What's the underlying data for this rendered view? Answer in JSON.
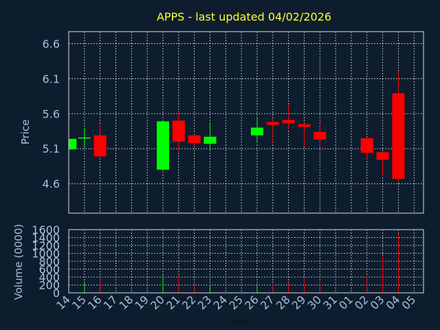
{
  "chart_data": {
    "type": "candlestick",
    "title": "APPS - last updated 04/02/2026",
    "ylabel_price": "Price",
    "ylabel_volume": "Volume (0000)",
    "xlabel": "Day",
    "price_ticks": [
      "6.6",
      "6.1",
      "5.6",
      "5.1",
      "4.6"
    ],
    "price_tick_values": [
      6.6,
      6.1,
      5.6,
      5.1,
      4.6
    ],
    "price_ylim": [
      4.18,
      6.77
    ],
    "volume_ticks": [
      "1600",
      "1400",
      "1200",
      "1000",
      "800",
      "600",
      "400",
      "200",
      "0"
    ],
    "volume_tick_values": [
      1600,
      1400,
      1200,
      1000,
      800,
      600,
      400,
      200,
      0
    ],
    "volume_ylim": [
      0,
      1600
    ],
    "x_ticks": [
      "14",
      "15",
      "16",
      "17",
      "18",
      "19",
      "20",
      "21",
      "22",
      "23",
      "24",
      "25",
      "26",
      "27",
      "28",
      "29",
      "30",
      "31",
      "01",
      "02",
      "03",
      "04",
      "05"
    ],
    "x_tick_index": [
      0,
      1,
      2,
      3,
      4,
      5,
      6,
      7,
      8,
      9,
      10,
      11,
      12,
      13,
      14,
      15,
      16,
      17,
      18,
      19,
      20,
      21,
      22
    ],
    "x_range": [
      0,
      22.6
    ],
    "candles": [
      {
        "day": "14",
        "x": 0.1,
        "open": 5.09,
        "close": 5.24,
        "high": 5.24,
        "low": 5.08,
        "volume": 0
      },
      {
        "day": "15",
        "x": 1.0,
        "open": 5.25,
        "close": 5.26,
        "high": 5.4,
        "low": 5.12,
        "volume": 250
      },
      {
        "day": "16",
        "x": 2.0,
        "open": 5.29,
        "close": 4.99,
        "high": 5.46,
        "low": 4.97,
        "volume": 340
      },
      {
        "day": "20",
        "x": 6.0,
        "open": 4.8,
        "close": 5.49,
        "high": 5.51,
        "low": 4.78,
        "volume": 450
      },
      {
        "day": "21",
        "x": 7.0,
        "open": 5.5,
        "close": 5.2,
        "high": 5.62,
        "low": 5.05,
        "volume": 440
      },
      {
        "day": "22",
        "x": 8.0,
        "open": 5.29,
        "close": 5.18,
        "high": 5.31,
        "low": 5.12,
        "volume": 200
      },
      {
        "day": "23",
        "x": 9.0,
        "open": 5.17,
        "close": 5.27,
        "high": 5.48,
        "low": 5.07,
        "volume": 200
      },
      {
        "day": "26",
        "x": 12.0,
        "open": 5.29,
        "close": 5.4,
        "high": 5.54,
        "low": 5.19,
        "volume": 220
      },
      {
        "day": "27",
        "x": 13.0,
        "open": 5.48,
        "close": 5.44,
        "high": 5.53,
        "low": 5.19,
        "volume": 210
      },
      {
        "day": "28",
        "x": 14.0,
        "open": 5.51,
        "close": 5.46,
        "high": 5.73,
        "low": 5.37,
        "volume": 230
      },
      {
        "day": "29",
        "x": 15.0,
        "open": 5.45,
        "close": 5.41,
        "high": 5.46,
        "low": 5.12,
        "volume": 350
      },
      {
        "day": "30",
        "x": 16.0,
        "open": 5.34,
        "close": 5.23,
        "high": 5.45,
        "low": 5.13,
        "volume": 280
      },
      {
        "day": "02",
        "x": 19.0,
        "open": 5.25,
        "close": 5.04,
        "high": 5.25,
        "low": 4.94,
        "volume": 420
      },
      {
        "day": "03",
        "x": 20.0,
        "open": 5.05,
        "close": 4.94,
        "high": 5.04,
        "low": 4.71,
        "volume": 920
      },
      {
        "day": "04",
        "x": 21.0,
        "open": 5.89,
        "close": 4.67,
        "high": 6.2,
        "low": 4.62,
        "volume": 1500
      }
    ],
    "grid": true,
    "colors": {
      "up": "#00ff00",
      "down": "#ff0000",
      "background": "#0e1d2e",
      "plot_bg": "#0e1d2e",
      "grid": "#d8dee6",
      "text": "#a9c0d9",
      "title": "#ffff33"
    }
  }
}
